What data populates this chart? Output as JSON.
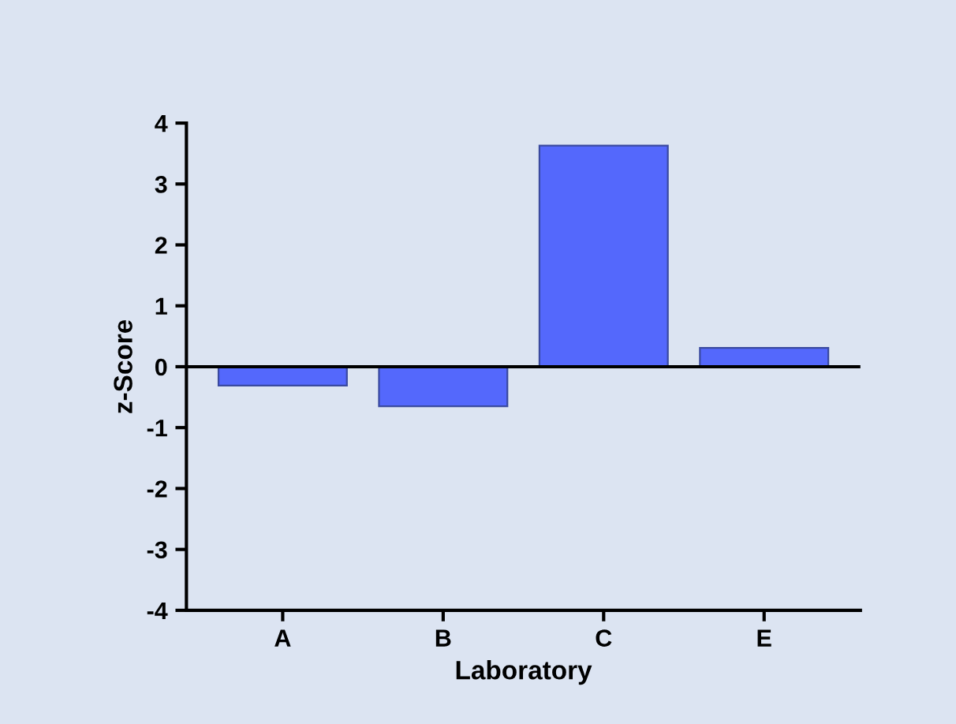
{
  "chart_data": {
    "type": "bar",
    "xlabel": "Laboratory",
    "ylabel": "z-Score",
    "categories": [
      "A",
      "B",
      "C",
      "E"
    ],
    "values": [
      -0.31,
      -0.65,
      3.63,
      0.31
    ],
    "color": "#5468fc",
    "ylim": [
      -4,
      4
    ],
    "yticks": [
      -4,
      -3,
      -2,
      -1,
      0,
      1,
      2,
      3,
      4
    ],
    "ref_lines": [
      {
        "axis": "y",
        "value": 0,
        "color": "#000000"
      }
    ],
    "grid": false,
    "legend": false
  }
}
